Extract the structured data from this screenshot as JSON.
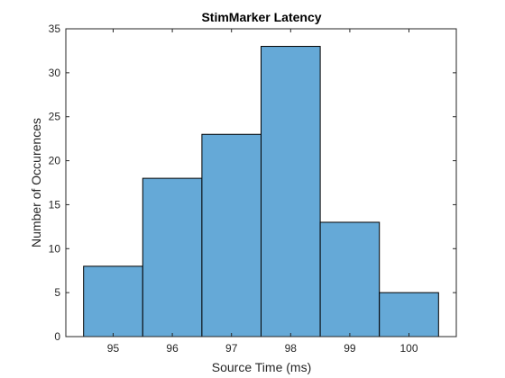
{
  "chart_data": {
    "type": "bar",
    "title": "StimMarker Latency",
    "xlabel": "Source Time (ms)",
    "ylabel": "Number of Occurences",
    "bin_edges": [
      94.5,
      95.5,
      96.5,
      97.5,
      98.5,
      99.5,
      100.5
    ],
    "values": [
      8,
      18,
      23,
      33,
      13,
      5
    ],
    "xlim": [
      94.2,
      100.8
    ],
    "ylim": [
      0,
      35
    ],
    "xticks": [
      "95",
      "96",
      "97",
      "98",
      "99",
      "100"
    ],
    "xtick_values": [
      95,
      96,
      97,
      98,
      99,
      100
    ],
    "yticks": [
      "0",
      "5",
      "10",
      "15",
      "20",
      "25",
      "30",
      "35"
    ],
    "ytick_values": [
      0,
      5,
      10,
      15,
      20,
      25,
      30,
      35
    ],
    "grid": false,
    "bar_color": "#65a9d7",
    "edge_color": "#000000"
  }
}
